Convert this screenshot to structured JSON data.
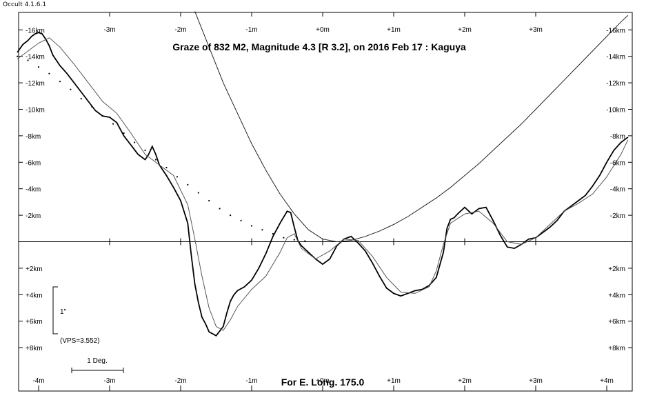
{
  "app_title": "Occult 4.1.6.1",
  "chart_data": {
    "type": "line",
    "title": "Graze of  832 M2,  Magnitude 4.3 [R 3.2],  on 2016 Feb 17  :  Kaguya",
    "footer": "For E. Long. 175.0",
    "x_ticks_top": [
      "-3m",
      "-2m",
      "-1m",
      "+0m",
      "+1m",
      "+2m",
      "+3m"
    ],
    "x_ticks_top_values": [
      -3,
      -2,
      -1,
      0,
      1,
      2,
      3
    ],
    "x_ticks_bottom": [
      "-4m",
      "-3m",
      "-2m",
      "-1m",
      "+0m",
      "+1m",
      "+2m",
      "+3m",
      "+4m"
    ],
    "x_ticks_bottom_values": [
      -4,
      -3,
      -2,
      -1,
      0,
      1,
      2,
      3,
      4
    ],
    "y_tick_labels": [
      "-16km",
      "-14km",
      "-12km",
      "-10km",
      "-8km",
      "-6km",
      "-4km",
      "-2km",
      "+2km",
      "+4km",
      "+6km",
      "+8km"
    ],
    "y_tick_values": [
      16,
      14,
      12,
      10,
      8,
      6,
      4,
      2,
      -2,
      -4,
      -6,
      -8
    ],
    "xlim": [
      -4.3,
      4.3
    ],
    "ylim": [
      -11.5,
      17
    ],
    "scale_bar_label": "1\"",
    "vps_label": "(VPS=3.552)",
    "deg_label": "1 Deg.",
    "series": [
      {
        "role": "limb-profile",
        "x": [
          -4.3,
          -4.22,
          -4.15,
          -4.1,
          -4.05,
          -4.0,
          -3.95,
          -3.9,
          -3.85,
          -3.8,
          -3.7,
          -3.6,
          -3.5,
          -3.4,
          -3.3,
          -3.2,
          -3.1,
          -3.0,
          -2.9,
          -2.8,
          -2.7,
          -2.6,
          -2.5,
          -2.45,
          -2.4,
          -2.35,
          -2.3,
          -2.2,
          -2.1,
          -2.0,
          -1.9,
          -1.85,
          -1.8,
          -1.75,
          -1.7,
          -1.65,
          -1.6,
          -1.5,
          -1.4,
          -1.35,
          -1.3,
          -1.25,
          -1.2,
          -1.1,
          -1.0,
          -0.9,
          -0.8,
          -0.7,
          -0.6,
          -0.5,
          -0.45,
          -0.4,
          -0.35,
          -0.3,
          -0.2,
          -0.1,
          0.0,
          0.1,
          0.2,
          0.3,
          0.4,
          0.5,
          0.6,
          0.7,
          0.8,
          0.9,
          1.0,
          1.1,
          1.2,
          1.3,
          1.4,
          1.5,
          1.6,
          1.7,
          1.75,
          1.8,
          1.85,
          1.9,
          2.0,
          2.1,
          2.2,
          2.3,
          2.4,
          2.5,
          2.6,
          2.7,
          2.8,
          2.9,
          3.0,
          3.1,
          3.2,
          3.3,
          3.4,
          3.5,
          3.6,
          3.7,
          3.8,
          3.9,
          4.0,
          4.1,
          4.2,
          4.3
        ],
        "y": [
          14.3,
          14.9,
          15.2,
          15.5,
          15.7,
          15.8,
          15.7,
          15.3,
          14.8,
          14.1,
          13.3,
          12.7,
          12.0,
          11.3,
          10.6,
          9.9,
          9.5,
          9.4,
          9.0,
          8.0,
          7.3,
          6.6,
          6.2,
          6.6,
          7.2,
          6.6,
          5.8,
          5.0,
          4.1,
          3.1,
          1.4,
          -1.0,
          -3.2,
          -4.6,
          -5.7,
          -6.2,
          -6.8,
          -7.1,
          -6.4,
          -5.4,
          -4.5,
          -4.0,
          -3.7,
          -3.4,
          -2.9,
          -2.0,
          -0.9,
          0.4,
          1.4,
          2.3,
          2.2,
          1.1,
          0.1,
          -0.3,
          -0.8,
          -1.3,
          -1.7,
          -1.3,
          -0.3,
          0.2,
          0.4,
          -0.1,
          -0.7,
          -1.6,
          -2.6,
          -3.5,
          -3.9,
          -4.1,
          -3.9,
          -3.7,
          -3.6,
          -3.3,
          -2.7,
          -0.8,
          1.0,
          1.7,
          1.8,
          2.1,
          2.6,
          2.1,
          2.5,
          2.6,
          1.6,
          0.5,
          -0.4,
          -0.5,
          -0.2,
          0.2,
          0.3,
          0.7,
          1.1,
          1.6,
          2.3,
          2.7,
          3.1,
          3.5,
          4.2,
          5.0,
          6.0,
          6.9,
          7.5,
          7.9
        ]
      },
      {
        "role": "smoothed-profile",
        "x": [
          -4.3,
          -4.0,
          -3.85,
          -3.7,
          -3.5,
          -3.3,
          -3.1,
          -2.9,
          -2.7,
          -2.5,
          -2.3,
          -2.1,
          -1.9,
          -1.8,
          -1.7,
          -1.6,
          -1.5,
          -1.4,
          -1.3,
          -1.2,
          -1.0,
          -0.8,
          -0.6,
          -0.5,
          -0.4,
          -0.3,
          -0.1,
          0.1,
          0.3,
          0.5,
          0.7,
          0.9,
          1.1,
          1.3,
          1.5,
          1.6,
          1.7,
          1.8,
          2.0,
          2.2,
          2.4,
          2.6,
          2.8,
          3.0,
          3.2,
          3.4,
          3.6,
          3.8,
          4.0,
          4.2,
          4.3
        ],
        "y": [
          13.8,
          15.0,
          15.4,
          14.7,
          13.4,
          12.0,
          10.6,
          9.7,
          8.2,
          6.6,
          5.8,
          5.0,
          2.8,
          0.2,
          -2.6,
          -5.0,
          -6.4,
          -6.7,
          -5.9,
          -4.9,
          -3.6,
          -2.6,
          -0.8,
          0.3,
          0.6,
          -0.5,
          -1.3,
          -0.7,
          0.2,
          0.1,
          -1.1,
          -2.7,
          -3.8,
          -3.9,
          -3.4,
          -2.2,
          -0.2,
          1.4,
          2.1,
          2.3,
          1.4,
          0.0,
          -0.2,
          0.3,
          1.3,
          2.3,
          2.9,
          3.6,
          4.9,
          6.6,
          7.7
        ]
      },
      {
        "role": "dotted-reference",
        "x": [
          -4.3,
          -4.15,
          -4.0,
          -3.85,
          -3.7,
          -3.55,
          -3.4,
          -3.25,
          -3.1,
          -2.95,
          -2.8,
          -2.65,
          -2.5,
          -2.35,
          -2.2,
          -2.05,
          -1.9,
          -1.75,
          -1.6,
          -1.45,
          -1.3,
          -1.15,
          -1.0,
          -0.85,
          -0.7,
          -0.55,
          -0.4,
          -0.25
        ],
        "y": [
          14.0,
          13.7,
          13.2,
          12.7,
          12.1,
          11.5,
          10.8,
          10.2,
          9.5,
          8.9,
          8.2,
          7.5,
          6.9,
          6.2,
          5.6,
          4.9,
          4.3,
          3.7,
          3.1,
          2.5,
          2.0,
          1.6,
          1.2,
          0.9,
          0.6,
          0.3,
          0.15,
          0.05
        ]
      },
      {
        "role": "parabola",
        "x": [
          -1.8,
          -1.6,
          -1.4,
          -1.2,
          -1.0,
          -0.8,
          -0.6,
          -0.4,
          -0.2,
          0.0,
          0.2,
          0.4,
          0.6,
          0.8,
          1.0,
          1.2,
          1.4,
          1.6,
          1.8,
          2.0,
          2.2,
          2.4,
          2.6,
          2.8,
          3.0,
          3.2,
          3.4,
          3.6,
          3.8,
          4.0,
          4.2,
          4.3
        ],
        "y": [
          17.4,
          14.7,
          12.0,
          9.7,
          7.4,
          5.4,
          3.6,
          2.1,
          0.9,
          0.2,
          0.0,
          0.1,
          0.4,
          0.8,
          1.3,
          1.9,
          2.6,
          3.3,
          4.1,
          5.0,
          5.9,
          6.9,
          7.9,
          8.9,
          10.0,
          11.1,
          12.2,
          13.3,
          14.4,
          15.5,
          16.6,
          17.1
        ]
      }
    ]
  }
}
